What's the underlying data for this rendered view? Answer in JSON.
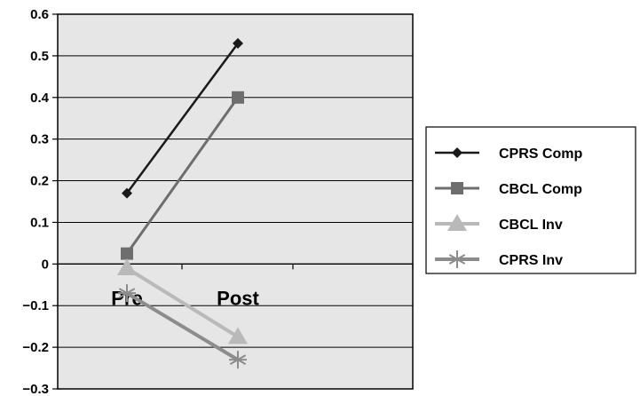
{
  "chart_data": {
    "type": "line",
    "categories": [
      "Pre",
      "Post"
    ],
    "ylim": [
      -0.3,
      0.6
    ],
    "yticks": [
      -0.3,
      -0.2,
      -0.1,
      0,
      0.1,
      0.2,
      0.3,
      0.4,
      0.5,
      0.6
    ],
    "ytick_labels": [
      "−0.3",
      "−0.2",
      "−0.1",
      "0",
      "0.1",
      "0.2",
      "0.3",
      "0.4",
      "0.5",
      "0.6"
    ],
    "grid": true,
    "legend_position": "right",
    "series": [
      {
        "name": "CPRS Comp",
        "values": [
          0.17,
          0.53
        ],
        "color": "#1a1a1a",
        "marker": "diamond"
      },
      {
        "name": "CBCL Comp",
        "values": [
          0.025,
          0.4
        ],
        "color": "#6e6e6e",
        "marker": "square"
      },
      {
        "name": "CBCL Inv",
        "values": [
          -0.01,
          -0.175
        ],
        "color": "#b9b9b9",
        "marker": "triangle"
      },
      {
        "name": "CPRS Inv",
        "values": [
          -0.07,
          -0.23
        ],
        "color": "#8c8c8c",
        "marker": "star"
      }
    ],
    "plot_background": "#e6e6e6"
  }
}
